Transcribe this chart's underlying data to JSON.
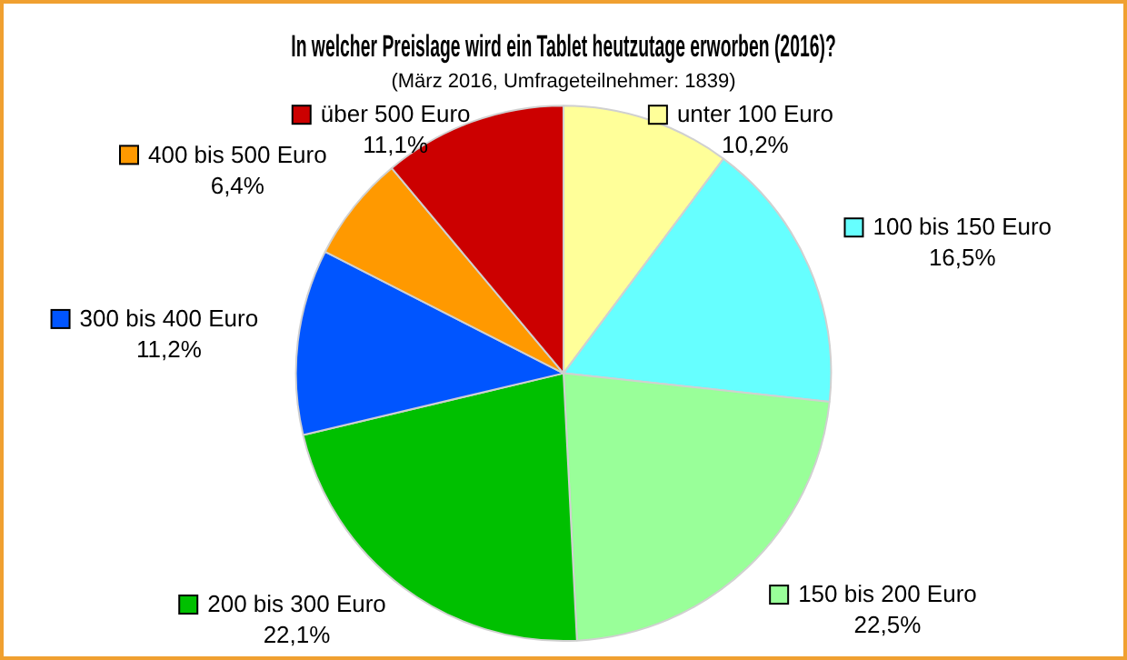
{
  "chart_data": {
    "type": "pie",
    "title": "In welcher Preislage wird ein Tablet heutzutage erworben (2016)?",
    "subtitle": "(März 2016, Umfrageteilnehmer: 1839)",
    "categories": [
      "unter 100 Euro",
      "100 bis 150 Euro",
      "150 bis 200 Euro",
      "200 bis 300 Euro",
      "300 bis 400 Euro",
      "400 bis 500 Euro",
      "über 500 Euro"
    ],
    "values": [
      10.2,
      16.5,
      22.5,
      22.1,
      11.2,
      6.4,
      11.1
    ],
    "value_labels": [
      "10,2%",
      "16,5%",
      "22,5%",
      "22,1%",
      "11,2%",
      "6,4%",
      "11,1%"
    ],
    "legend": "right",
    "colors": [
      "#ffff99",
      "#66ffff",
      "#99ff99",
      "#00c000",
      "#0055ff",
      "#ff9900",
      "#cc0000"
    ]
  }
}
